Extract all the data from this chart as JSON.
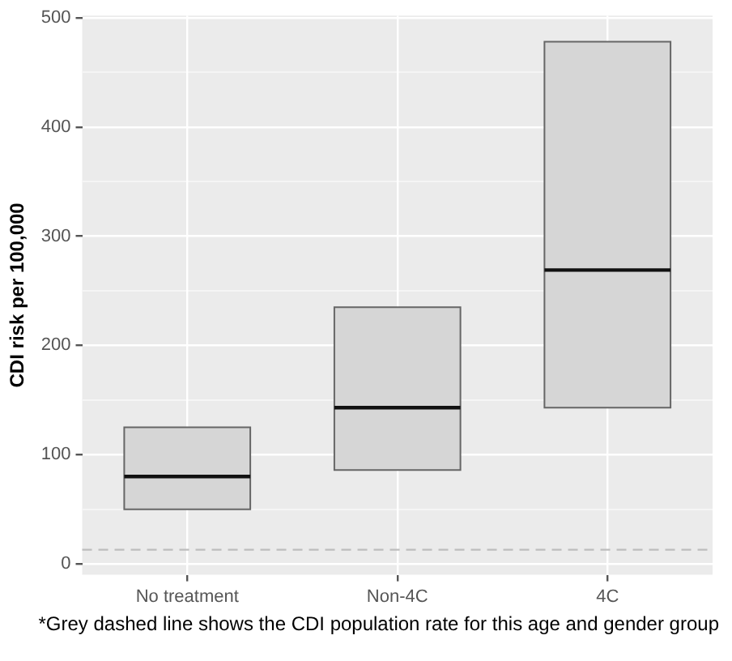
{
  "chart_data": {
    "type": "box",
    "ylabel": "CDI risk per 100,000",
    "categories": [
      "No treatment",
      "Non-4C",
      "4C"
    ],
    "color": "#d6d6d6",
    "boxes": [
      {
        "low": 50,
        "q1": 50,
        "median": 80,
        "q3": 125,
        "high": 125
      },
      {
        "low": 86,
        "q1": 86,
        "median": 143,
        "q3": 235,
        "high": 235
      },
      {
        "low": 143,
        "q1": 143,
        "median": 269,
        "q3": 478,
        "high": 478
      }
    ],
    "ylim": [
      -10,
      502
    ],
    "yticks": [
      0,
      {
        "value": 50,
        "label": null
      },
      100,
      {
        "value": 150,
        "label": null
      },
      200,
      {
        "value": 250,
        "label": null
      },
      300,
      {
        "value": 350,
        "label": null
      },
      400,
      {
        "value": 450,
        "label": null
      },
      500
    ],
    "ref_lines": [
      {
        "axis": "y",
        "value": 13,
        "color": "#bdbdbd",
        "line_style": "dashed"
      }
    ],
    "grid": true,
    "legend": false,
    "annotations": [
      "*Grey dashed line shows the CDI population rate for this age and gender group"
    ]
  }
}
